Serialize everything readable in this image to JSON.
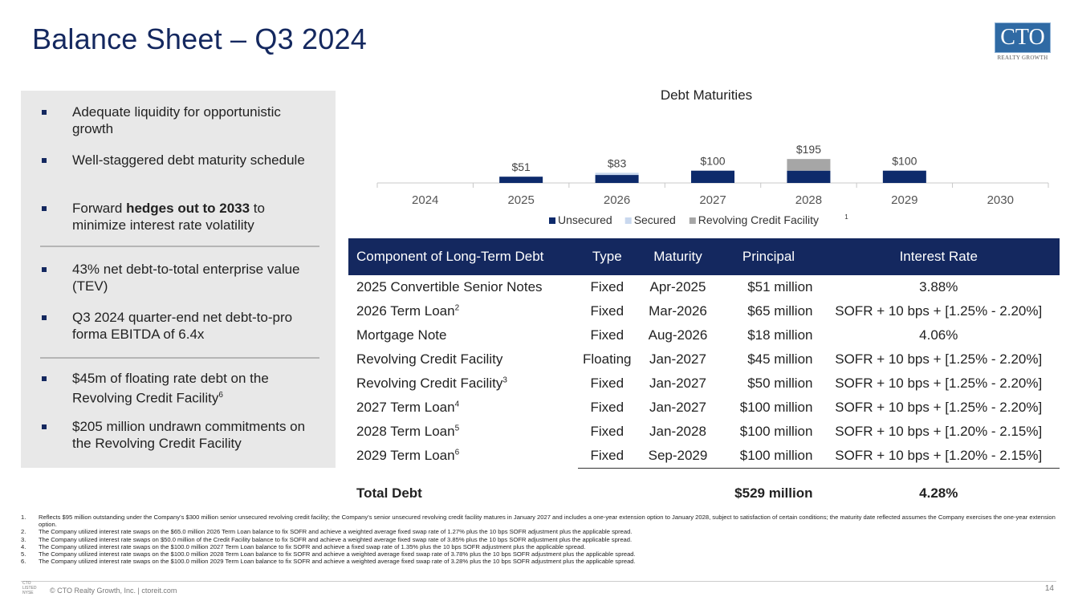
{
  "title": "Balance Sheet – Q3 2024",
  "logo": {
    "text": "CTO",
    "sub": "REALTY GROWTH"
  },
  "bullets": {
    "group1": [
      {
        "text": "Adequate liquidity for  opportunistic growth"
      },
      {
        "text": "Well-staggered debt maturity schedule"
      },
      {
        "pre": "Forward ",
        "bold": "hedges out to 2033",
        "post": " to minimize interest rate volatility"
      }
    ],
    "group2": [
      {
        "text": "43% net debt-to-total enterprise value (TEV)"
      },
      {
        "text": "Q3 2024 quarter-end net debt-to-pro forma EBITDA of 6.4x"
      }
    ],
    "group3": [
      {
        "text": "$45m of floating rate debt on the Revolving Credit Facility",
        "sup": "6"
      },
      {
        "text": "$205 million undrawn commitments on the Revolving Credit Facility"
      }
    ]
  },
  "chart_data": {
    "type": "bar",
    "stacked": true,
    "title": "Debt Maturities",
    "categories": [
      "2024",
      "2025",
      "2026",
      "2027",
      "2028",
      "2029",
      "2030"
    ],
    "series": [
      {
        "name": "Unsecured",
        "color": "#0d2a6b",
        "values": [
          0,
          51,
          65,
          100,
          100,
          100,
          0
        ]
      },
      {
        "name": "Secured",
        "color": "#c9d8ee",
        "values": [
          0,
          0,
          18,
          0,
          0,
          0,
          0
        ]
      },
      {
        "name": "Revolving Credit Facility",
        "name_sup": "1",
        "color": "#a6a6a6",
        "values": [
          0,
          0,
          0,
          0,
          95,
          0,
          0
        ]
      }
    ],
    "totals": [
      "",
      "$51",
      "$83",
      "$100",
      "$195",
      "$100",
      ""
    ],
    "legend": "bottom",
    "grid": false
  },
  "table": {
    "headers": [
      "Component of Long-Term Debt",
      "Type",
      "Maturity",
      "Principal",
      "Interest Rate"
    ],
    "rows": [
      {
        "name": "2025 Convertible Senior Notes",
        "sup": "",
        "type": "Fixed",
        "maturity": "Apr-2025",
        "principal": "$51 million",
        "rate": "3.88%"
      },
      {
        "name": "2026 Term Loan",
        "sup": "2",
        "type": "Fixed",
        "maturity": "Mar-2026",
        "principal": "$65 million",
        "rate": "SOFR + 10 bps + [1.25% - 2.20%]"
      },
      {
        "name": "Mortgage Note",
        "sup": "",
        "type": "Fixed",
        "maturity": "Aug-2026",
        "principal": "$18 million",
        "rate": "4.06%"
      },
      {
        "name": "Revolving Credit Facility",
        "sup": "",
        "type": "Floating",
        "maturity": "Jan-2027",
        "principal": "$45 million",
        "rate": "SOFR + 10 bps + [1.25% - 2.20%]"
      },
      {
        "name": "Revolving Credit Facility",
        "sup": "3",
        "type": "Fixed",
        "maturity": "Jan-2027",
        "principal": "$50 million",
        "rate": "SOFR + 10 bps + [1.25% - 2.20%]"
      },
      {
        "name": "2027 Term Loan",
        "sup": "4",
        "type": "Fixed",
        "maturity": "Jan-2027",
        "principal": "$100 million",
        "rate": "SOFR + 10 bps + [1.25% - 2.20%]"
      },
      {
        "name": "2028 Term Loan",
        "sup": "5",
        "type": "Fixed",
        "maturity": "Jan-2028",
        "principal": "$100 million",
        "rate": "SOFR + 10 bps + [1.20% - 2.15%]"
      },
      {
        "name": "2029 Term Loan",
        "sup": "6",
        "type": "Fixed",
        "maturity": "Sep-2029",
        "principal": "$100 million",
        "rate": "SOFR + 10 bps + [1.20% - 2.15%]"
      }
    ],
    "total": {
      "label": "Total Debt",
      "principal": "$529 million",
      "rate": "4.28%"
    }
  },
  "footnotes": [
    {
      "num": "1.",
      "text": "Reflects $95 million outstanding under the Company’s $300 million senior unsecured revolving credit facility; the Company’s senior unsecured revolving credit facility matures in January 2027 and includes a one-year extension option to January 2028, subject to satisfaction of certain conditions; the maturity date reflected assumes the Company exercises the one-year extension option."
    },
    {
      "num": "2.",
      "text": "The Company utilized interest rate swaps on the $65.0 million 2026 Term Loan balance to fix SOFR and achieve a weighted average fixed swap rate of 1.27% plus the 10 bps SOFR adjustment plus the applicable spread."
    },
    {
      "num": "3.",
      "text": "The Company utilized interest rate swaps on $50.0 million of the Credit Facility balance to fix SOFR and achieve a weighted average fixed swap rate of 3.85% plus the 10 bps SOFR adjustment plus the applicable spread."
    },
    {
      "num": "4.",
      "text": "The Company utilized interest rate swaps on the $100.0 million 2027 Term Loan balance to fix SOFR and achieve a fixed swap rate of 1.35% plus the 10 bps SOFR adjustment plus the applicable spread."
    },
    {
      "num": "5.",
      "text": "The Company utilized interest rate swaps on the $100.0 million 2028 Term Loan balance to fix SOFR and achieve a weighted average fixed swap rate of 3.78% plus the 10 bps SOFR adjustment plus the applicable spread."
    },
    {
      "num": "6.",
      "text": "The Company utilized interest rate swaps on the $100.0 million 2029 Term Loan balance to fix SOFR and achieve a weighted average fixed swap rate of 3.28% plus the 10 bps SOFR adjustment plus the applicable spread."
    }
  ],
  "footer": {
    "text": "© CTO Realty Growth, Inc. | ctoreit.com",
    "mini_logo": [
      "CTO",
      "LISTED",
      "NYSE"
    ],
    "page": "14"
  }
}
